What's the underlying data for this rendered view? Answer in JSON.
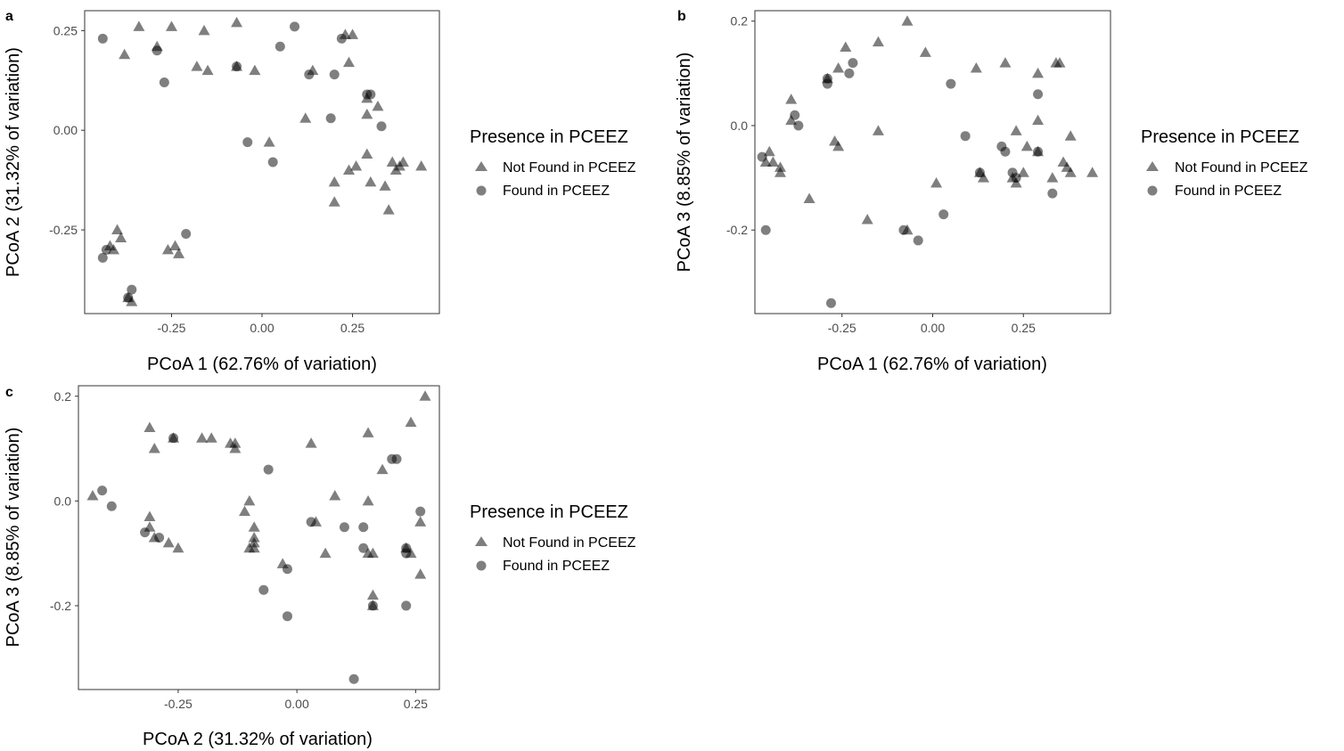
{
  "colors": {
    "point": "#000000",
    "point_opacity": 0.5,
    "frame": "#333333",
    "tick": "#4d4d4d"
  },
  "legend": {
    "title": "Presence in PCEEZ",
    "items": [
      {
        "label": "Not Found in PCEEZ",
        "shape": "triangle"
      },
      {
        "label": "Found in PCEEZ",
        "shape": "circle"
      }
    ]
  },
  "chart_data": [
    {
      "panel": "a",
      "type": "scatter",
      "xlabel": "PCoA 1 (62.76% of variation)",
      "ylabel": "PCoA 2 (31.32% of variation)",
      "xlim": [
        -0.49,
        0.49
      ],
      "ylim": [
        -0.46,
        0.3
      ],
      "xticks": [
        -0.25,
        0.0,
        0.25
      ],
      "xtick_labels": [
        "-0.25",
        "0.00",
        "0.25"
      ],
      "yticks": [
        -0.25,
        0.0,
        0.25
      ],
      "ytick_labels": [
        "-0.25",
        "0.00",
        "0.25"
      ],
      "grid": false,
      "legend_position": "right",
      "series": [
        {
          "name": "Not Found in PCEEZ",
          "shape": "triangle",
          "points": [
            [
              -0.34,
              0.26
            ],
            [
              -0.38,
              0.19
            ],
            [
              -0.29,
              0.21
            ],
            [
              -0.25,
              0.26
            ],
            [
              -0.16,
              0.25
            ],
            [
              -0.18,
              0.16
            ],
            [
              -0.15,
              0.15
            ],
            [
              -0.07,
              0.27
            ],
            [
              -0.02,
              0.15
            ],
            [
              -0.07,
              0.16
            ],
            [
              0.12,
              0.03
            ],
            [
              0.14,
              0.15
            ],
            [
              0.23,
              0.24
            ],
            [
              0.25,
              0.24
            ],
            [
              0.24,
              0.17
            ],
            [
              0.29,
              0.08
            ],
            [
              0.32,
              0.06
            ],
            [
              0.29,
              0.04
            ],
            [
              0.02,
              -0.03
            ],
            [
              0.29,
              -0.06
            ],
            [
              0.26,
              -0.09
            ],
            [
              0.24,
              -0.1
            ],
            [
              0.2,
              -0.13
            ],
            [
              0.2,
              -0.18
            ],
            [
              0.3,
              -0.13
            ],
            [
              0.34,
              -0.14
            ],
            [
              0.35,
              -0.2
            ],
            [
              0.36,
              -0.08
            ],
            [
              0.38,
              -0.09
            ],
            [
              0.39,
              -0.08
            ],
            [
              0.44,
              -0.09
            ],
            [
              0.37,
              -0.1
            ],
            [
              -0.42,
              -0.29
            ],
            [
              -0.41,
              -0.3
            ],
            [
              -0.39,
              -0.27
            ],
            [
              -0.4,
              -0.25
            ],
            [
              -0.26,
              -0.3
            ],
            [
              -0.24,
              -0.29
            ],
            [
              -0.23,
              -0.31
            ],
            [
              -0.37,
              -0.42
            ],
            [
              -0.36,
              -0.43
            ]
          ]
        },
        {
          "name": "Found in PCEEZ",
          "shape": "circle",
          "points": [
            [
              -0.44,
              0.23
            ],
            [
              -0.29,
              0.2
            ],
            [
              -0.27,
              0.12
            ],
            [
              -0.07,
              0.16
            ],
            [
              0.05,
              0.21
            ],
            [
              0.09,
              0.26
            ],
            [
              0.13,
              0.14
            ],
            [
              0.2,
              0.14
            ],
            [
              0.22,
              0.23
            ],
            [
              0.29,
              0.09
            ],
            [
              0.3,
              0.09
            ],
            [
              0.33,
              0.01
            ],
            [
              0.19,
              0.03
            ],
            [
              -0.04,
              -0.03
            ],
            [
              0.03,
              -0.08
            ],
            [
              -0.21,
              -0.26
            ],
            [
              -0.43,
              -0.3
            ],
            [
              -0.44,
              -0.32
            ],
            [
              -0.36,
              -0.4
            ],
            [
              -0.37,
              -0.42
            ]
          ]
        }
      ]
    },
    {
      "panel": "b",
      "type": "scatter",
      "xlabel": "PCoA 1 (62.76% of variation)",
      "ylabel": "PCoA 3 (8.85% of variation)",
      "xlim": [
        -0.49,
        0.49
      ],
      "ylim": [
        -0.36,
        0.22
      ],
      "xticks": [
        -0.25,
        0.0,
        0.25
      ],
      "xtick_labels": [
        "-0.25",
        "0.00",
        "0.25"
      ],
      "yticks": [
        -0.2,
        0.0,
        0.2
      ],
      "ytick_labels": [
        "-0.2",
        "0.0",
        "0.2"
      ],
      "grid": false,
      "legend_position": "right",
      "series": [
        {
          "name": "Not Found in PCEEZ",
          "shape": "triangle",
          "points": [
            [
              -0.07,
              0.2
            ],
            [
              -0.02,
              0.14
            ],
            [
              -0.15,
              0.16
            ],
            [
              -0.24,
              0.15
            ],
            [
              -0.26,
              0.11
            ],
            [
              -0.29,
              0.09
            ],
            [
              -0.39,
              0.05
            ],
            [
              -0.39,
              0.01
            ],
            [
              -0.45,
              -0.05
            ],
            [
              -0.44,
              -0.07
            ],
            [
              -0.42,
              -0.08
            ],
            [
              -0.46,
              -0.07
            ],
            [
              -0.42,
              -0.09
            ],
            [
              -0.34,
              -0.14
            ],
            [
              -0.27,
              -0.03
            ],
            [
              -0.26,
              -0.04
            ],
            [
              -0.15,
              -0.01
            ],
            [
              -0.18,
              -0.18
            ],
            [
              -0.07,
              -0.2
            ],
            [
              0.01,
              -0.11
            ],
            [
              0.12,
              0.11
            ],
            [
              0.2,
              0.12
            ],
            [
              0.29,
              0.1
            ],
            [
              0.34,
              0.12
            ],
            [
              0.35,
              0.12
            ],
            [
              0.29,
              0.01
            ],
            [
              0.23,
              -0.01
            ],
            [
              0.26,
              -0.04
            ],
            [
              0.29,
              -0.05
            ],
            [
              0.38,
              -0.02
            ],
            [
              0.36,
              -0.07
            ],
            [
              0.37,
              -0.08
            ],
            [
              0.38,
              -0.09
            ],
            [
              0.44,
              -0.09
            ],
            [
              0.33,
              -0.1
            ],
            [
              0.25,
              -0.09
            ],
            [
              0.22,
              -0.1
            ],
            [
              0.23,
              -0.11
            ],
            [
              0.14,
              -0.1
            ],
            [
              0.13,
              -0.09
            ]
          ]
        },
        {
          "name": "Found in PCEEZ",
          "shape": "circle",
          "points": [
            [
              -0.29,
              0.09
            ],
            [
              -0.29,
              0.08
            ],
            [
              -0.22,
              0.12
            ],
            [
              -0.23,
              0.1
            ],
            [
              -0.38,
              0.02
            ],
            [
              -0.37,
              -0.0
            ],
            [
              -0.47,
              -0.06
            ],
            [
              -0.46,
              -0.2
            ],
            [
              -0.28,
              -0.34
            ],
            [
              -0.08,
              -0.2
            ],
            [
              -0.04,
              -0.22
            ],
            [
              0.03,
              -0.17
            ],
            [
              0.05,
              0.08
            ],
            [
              0.09,
              -0.02
            ],
            [
              0.19,
              -0.04
            ],
            [
              0.2,
              -0.05
            ],
            [
              0.13,
              -0.09
            ],
            [
              0.22,
              -0.09
            ],
            [
              0.23,
              -0.1
            ],
            [
              0.29,
              -0.05
            ],
            [
              0.29,
              0.06
            ],
            [
              0.33,
              -0.13
            ]
          ]
        }
      ]
    },
    {
      "panel": "c",
      "type": "scatter",
      "xlabel": "PCoA 2 (31.32% of variation)",
      "ylabel": "PCoA 3 (8.85% of variation)",
      "xlim": [
        -0.46,
        0.3
      ],
      "ylim": [
        -0.36,
        0.22
      ],
      "xticks": [
        -0.25,
        0.0,
        0.25
      ],
      "xtick_labels": [
        "-0.25",
        "0.00",
        "0.25"
      ],
      "yticks": [
        -0.2,
        0.0,
        0.2
      ],
      "ytick_labels": [
        "-0.2",
        "0.0",
        "0.2"
      ],
      "grid": false,
      "legend_position": "right",
      "series": [
        {
          "name": "Not Found in PCEEZ",
          "shape": "triangle",
          "points": [
            [
              -0.43,
              0.01
            ],
            [
              -0.31,
              0.14
            ],
            [
              -0.3,
              0.1
            ],
            [
              -0.26,
              0.12
            ],
            [
              -0.2,
              0.12
            ],
            [
              -0.18,
              0.12
            ],
            [
              -0.14,
              0.11
            ],
            [
              -0.13,
              0.1
            ],
            [
              -0.13,
              0.11
            ],
            [
              -0.1,
              -0.0
            ],
            [
              -0.11,
              -0.02
            ],
            [
              -0.09,
              -0.05
            ],
            [
              -0.09,
              -0.07
            ],
            [
              -0.09,
              -0.09
            ],
            [
              -0.09,
              -0.08
            ],
            [
              -0.1,
              -0.09
            ],
            [
              -0.31,
              -0.03
            ],
            [
              -0.31,
              -0.05
            ],
            [
              -0.3,
              -0.07
            ],
            [
              -0.27,
              -0.08
            ],
            [
              -0.25,
              -0.09
            ],
            [
              -0.03,
              -0.12
            ],
            [
              0.03,
              0.11
            ],
            [
              0.04,
              -0.04
            ],
            [
              0.06,
              -0.1
            ],
            [
              0.08,
              0.01
            ],
            [
              0.15,
              0.13
            ],
            [
              0.15,
              0.0
            ],
            [
              0.18,
              0.06
            ],
            [
              0.16,
              -0.1
            ],
            [
              0.16,
              -0.18
            ],
            [
              0.16,
              -0.2
            ],
            [
              0.24,
              0.15
            ],
            [
              0.27,
              0.2
            ],
            [
              0.23,
              -0.09
            ],
            [
              0.24,
              -0.1
            ],
            [
              0.26,
              -0.04
            ],
            [
              0.26,
              -0.14
            ],
            [
              0.15,
              -0.1
            ]
          ]
        },
        {
          "name": "Found in PCEEZ",
          "shape": "circle",
          "points": [
            [
              -0.41,
              0.02
            ],
            [
              -0.39,
              -0.01
            ],
            [
              -0.32,
              -0.06
            ],
            [
              -0.29,
              -0.07
            ],
            [
              -0.26,
              0.12
            ],
            [
              -0.06,
              0.06
            ],
            [
              -0.07,
              -0.17
            ],
            [
              -0.02,
              -0.13
            ],
            [
              -0.02,
              -0.22
            ],
            [
              0.03,
              -0.04
            ],
            [
              0.1,
              -0.05
            ],
            [
              0.14,
              -0.05
            ],
            [
              0.14,
              -0.09
            ],
            [
              0.12,
              -0.34
            ],
            [
              0.16,
              -0.2
            ],
            [
              0.2,
              0.08
            ],
            [
              0.21,
              0.08
            ],
            [
              0.23,
              -0.09
            ],
            [
              0.23,
              -0.1
            ],
            [
              0.23,
              -0.2
            ],
            [
              0.26,
              -0.02
            ]
          ]
        }
      ]
    }
  ]
}
